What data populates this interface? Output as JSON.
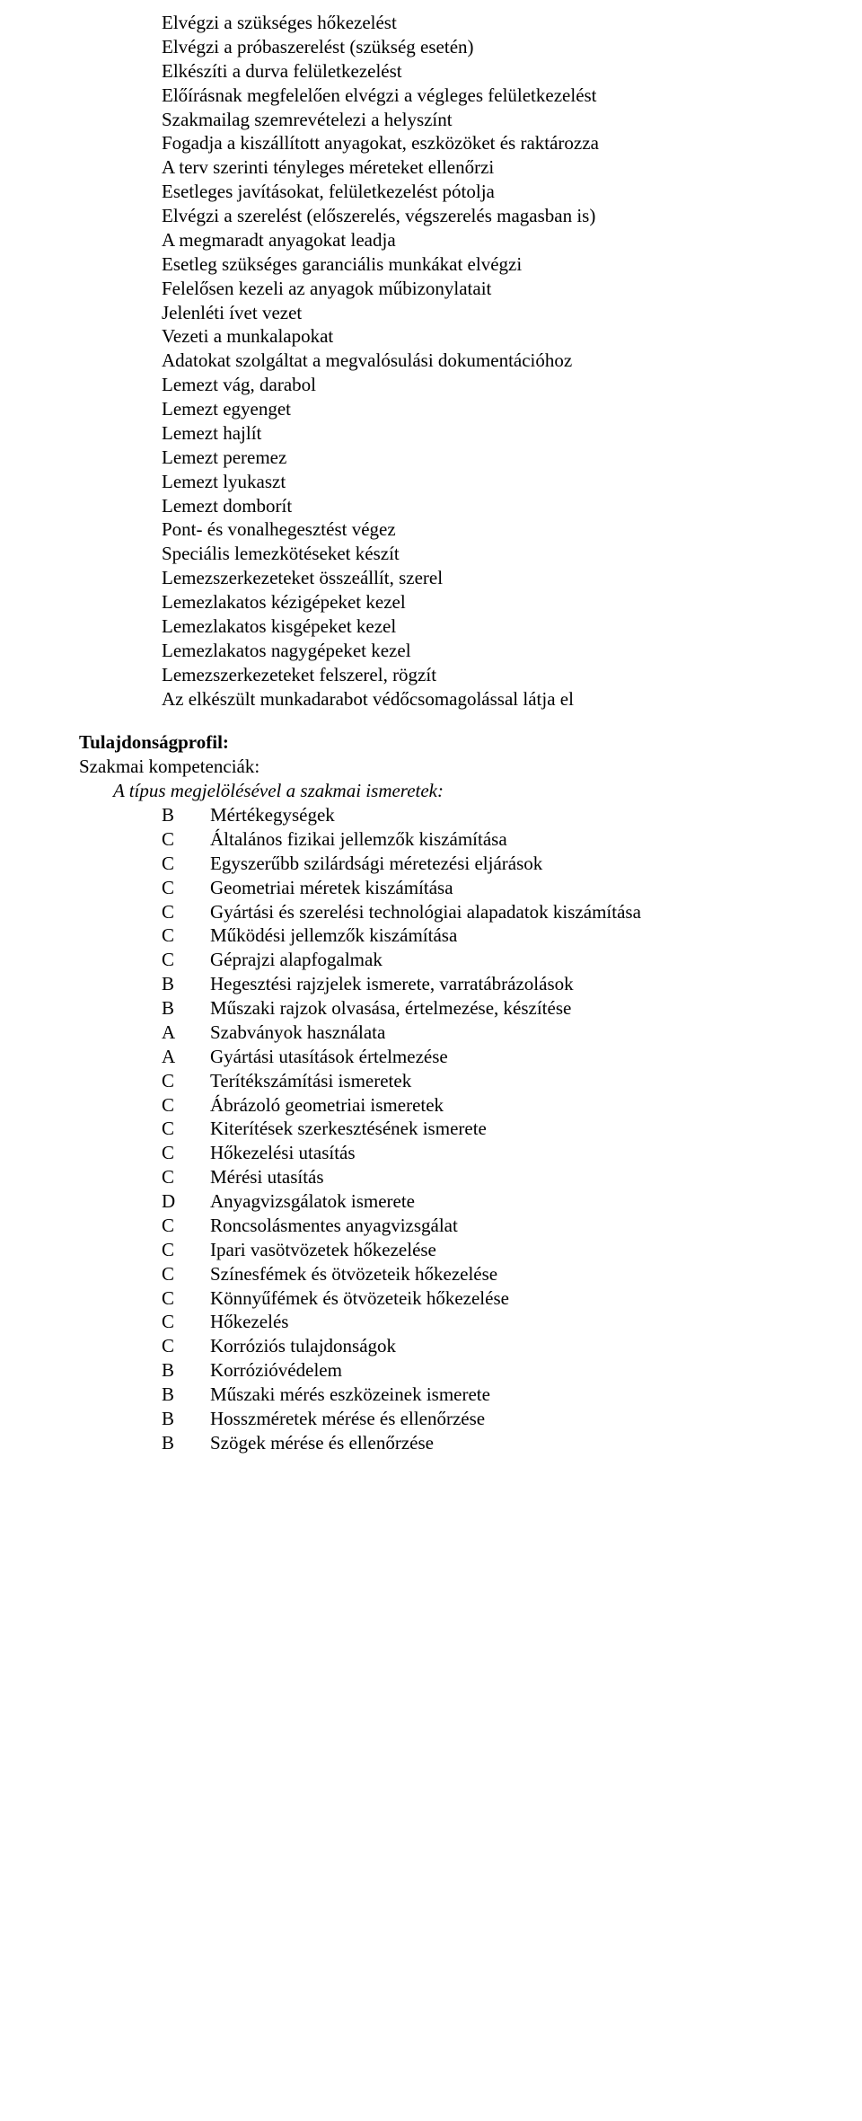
{
  "tasks": [
    "Elvégzi a szükséges hőkezelést",
    "Elvégzi a próbaszerelést (szükség esetén)",
    "Elkészíti a durva felületkezelést",
    "Előírásnak megfelelően elvégzi a végleges felületkezelést",
    "Szakmailag szemrevételezi a helyszínt",
    "Fogadja a kiszállított anyagokat, eszközöket és raktározza",
    "A terv szerinti tényleges méreteket ellenőrzi",
    "Esetleges javításokat, felületkezelést pótolja",
    "Elvégzi a szerelést (előszerelés, végszerelés magasban is)",
    "A megmaradt anyagokat leadja",
    "Esetleg szükséges garanciális munkákat elvégzi",
    "Felelősen kezeli az anyagok műbizonylatait",
    "Jelenléti ívet vezet",
    "Vezeti a munkalapokat",
    "Adatokat szolgáltat a megvalósulási dokumentációhoz",
    "Lemezt vág, darabol",
    "Lemezt egyenget",
    "Lemezt hajlít",
    "Lemezt peremez",
    "Lemezt lyukaszt",
    "Lemezt domborít",
    "Pont- és vonalhegesztést végez",
    "Speciális lemezkötéseket készít",
    "Lemezszerkezeteket összeállít, szerel",
    "Lemezlakatos kézigépeket kezel",
    "Lemezlakatos kisgépeket kezel",
    "Lemezlakatos nagygépeket kezel",
    "Lemezszerkezeteket felszerel, rögzít",
    "Az elkészült munkadarabot védőcsomagolással látja el"
  ],
  "profile_heading": "Tulajdonságprofil:",
  "competencies_heading": "Szakmai kompetenciák:",
  "italic_line": "A típus megjelölésével a szakmai ismeretek:",
  "competencies": [
    {
      "code": "B",
      "text": "Mértékegységek"
    },
    {
      "code": "C",
      "text": "Általános fizikai jellemzők kiszámítása"
    },
    {
      "code": "C",
      "text": "Egyszerűbb szilárdsági méretezési eljárások"
    },
    {
      "code": "C",
      "text": "Geometriai méretek kiszámítása"
    },
    {
      "code": "C",
      "text": "Gyártási és szerelési technológiai alapadatok kiszámítása"
    },
    {
      "code": "C",
      "text": "Működési jellemzők kiszámítása"
    },
    {
      "code": "C",
      "text": "Géprajzi alapfogalmak"
    },
    {
      "code": "B",
      "text": "Hegesztési rajzjelek ismerete, varratábrázolások"
    },
    {
      "code": "B",
      "text": "Műszaki rajzok olvasása, értelmezése, készítése"
    },
    {
      "code": "A",
      "text": "Szabványok használata"
    },
    {
      "code": "A",
      "text": "Gyártási utasítások értelmezése"
    },
    {
      "code": "C",
      "text": "Terítékszámítási ismeretek"
    },
    {
      "code": "C",
      "text": "Ábrázoló geometriai ismeretek"
    },
    {
      "code": "C",
      "text": "Kiterítések szerkesztésének ismerete"
    },
    {
      "code": "C",
      "text": "Hőkezelési utasítás"
    },
    {
      "code": "C",
      "text": "Mérési utasítás"
    },
    {
      "code": "D",
      "text": "Anyagvizsgálatok ismerete"
    },
    {
      "code": "C",
      "text": "Roncsolásmentes anyagvizsgálat"
    },
    {
      "code": "C",
      "text": "Ipari vasötvözetek hőkezelése"
    },
    {
      "code": "C",
      "text": "Színesfémek és ötvözeteik hőkezelése"
    },
    {
      "code": "C",
      "text": "Könnyűfémek és ötvözeteik hőkezelése"
    },
    {
      "code": "C",
      "text": "Hőkezelés"
    },
    {
      "code": "C",
      "text": "Korróziós tulajdonságok"
    },
    {
      "code": "B",
      "text": "Korrózióvédelem"
    },
    {
      "code": "B",
      "text": "Műszaki mérés eszközeinek ismerete"
    },
    {
      "code": "B",
      "text": "Hosszméretek mérése és ellenőrzése"
    },
    {
      "code": "B",
      "text": "Szögek mérése és ellenőrzése"
    }
  ]
}
